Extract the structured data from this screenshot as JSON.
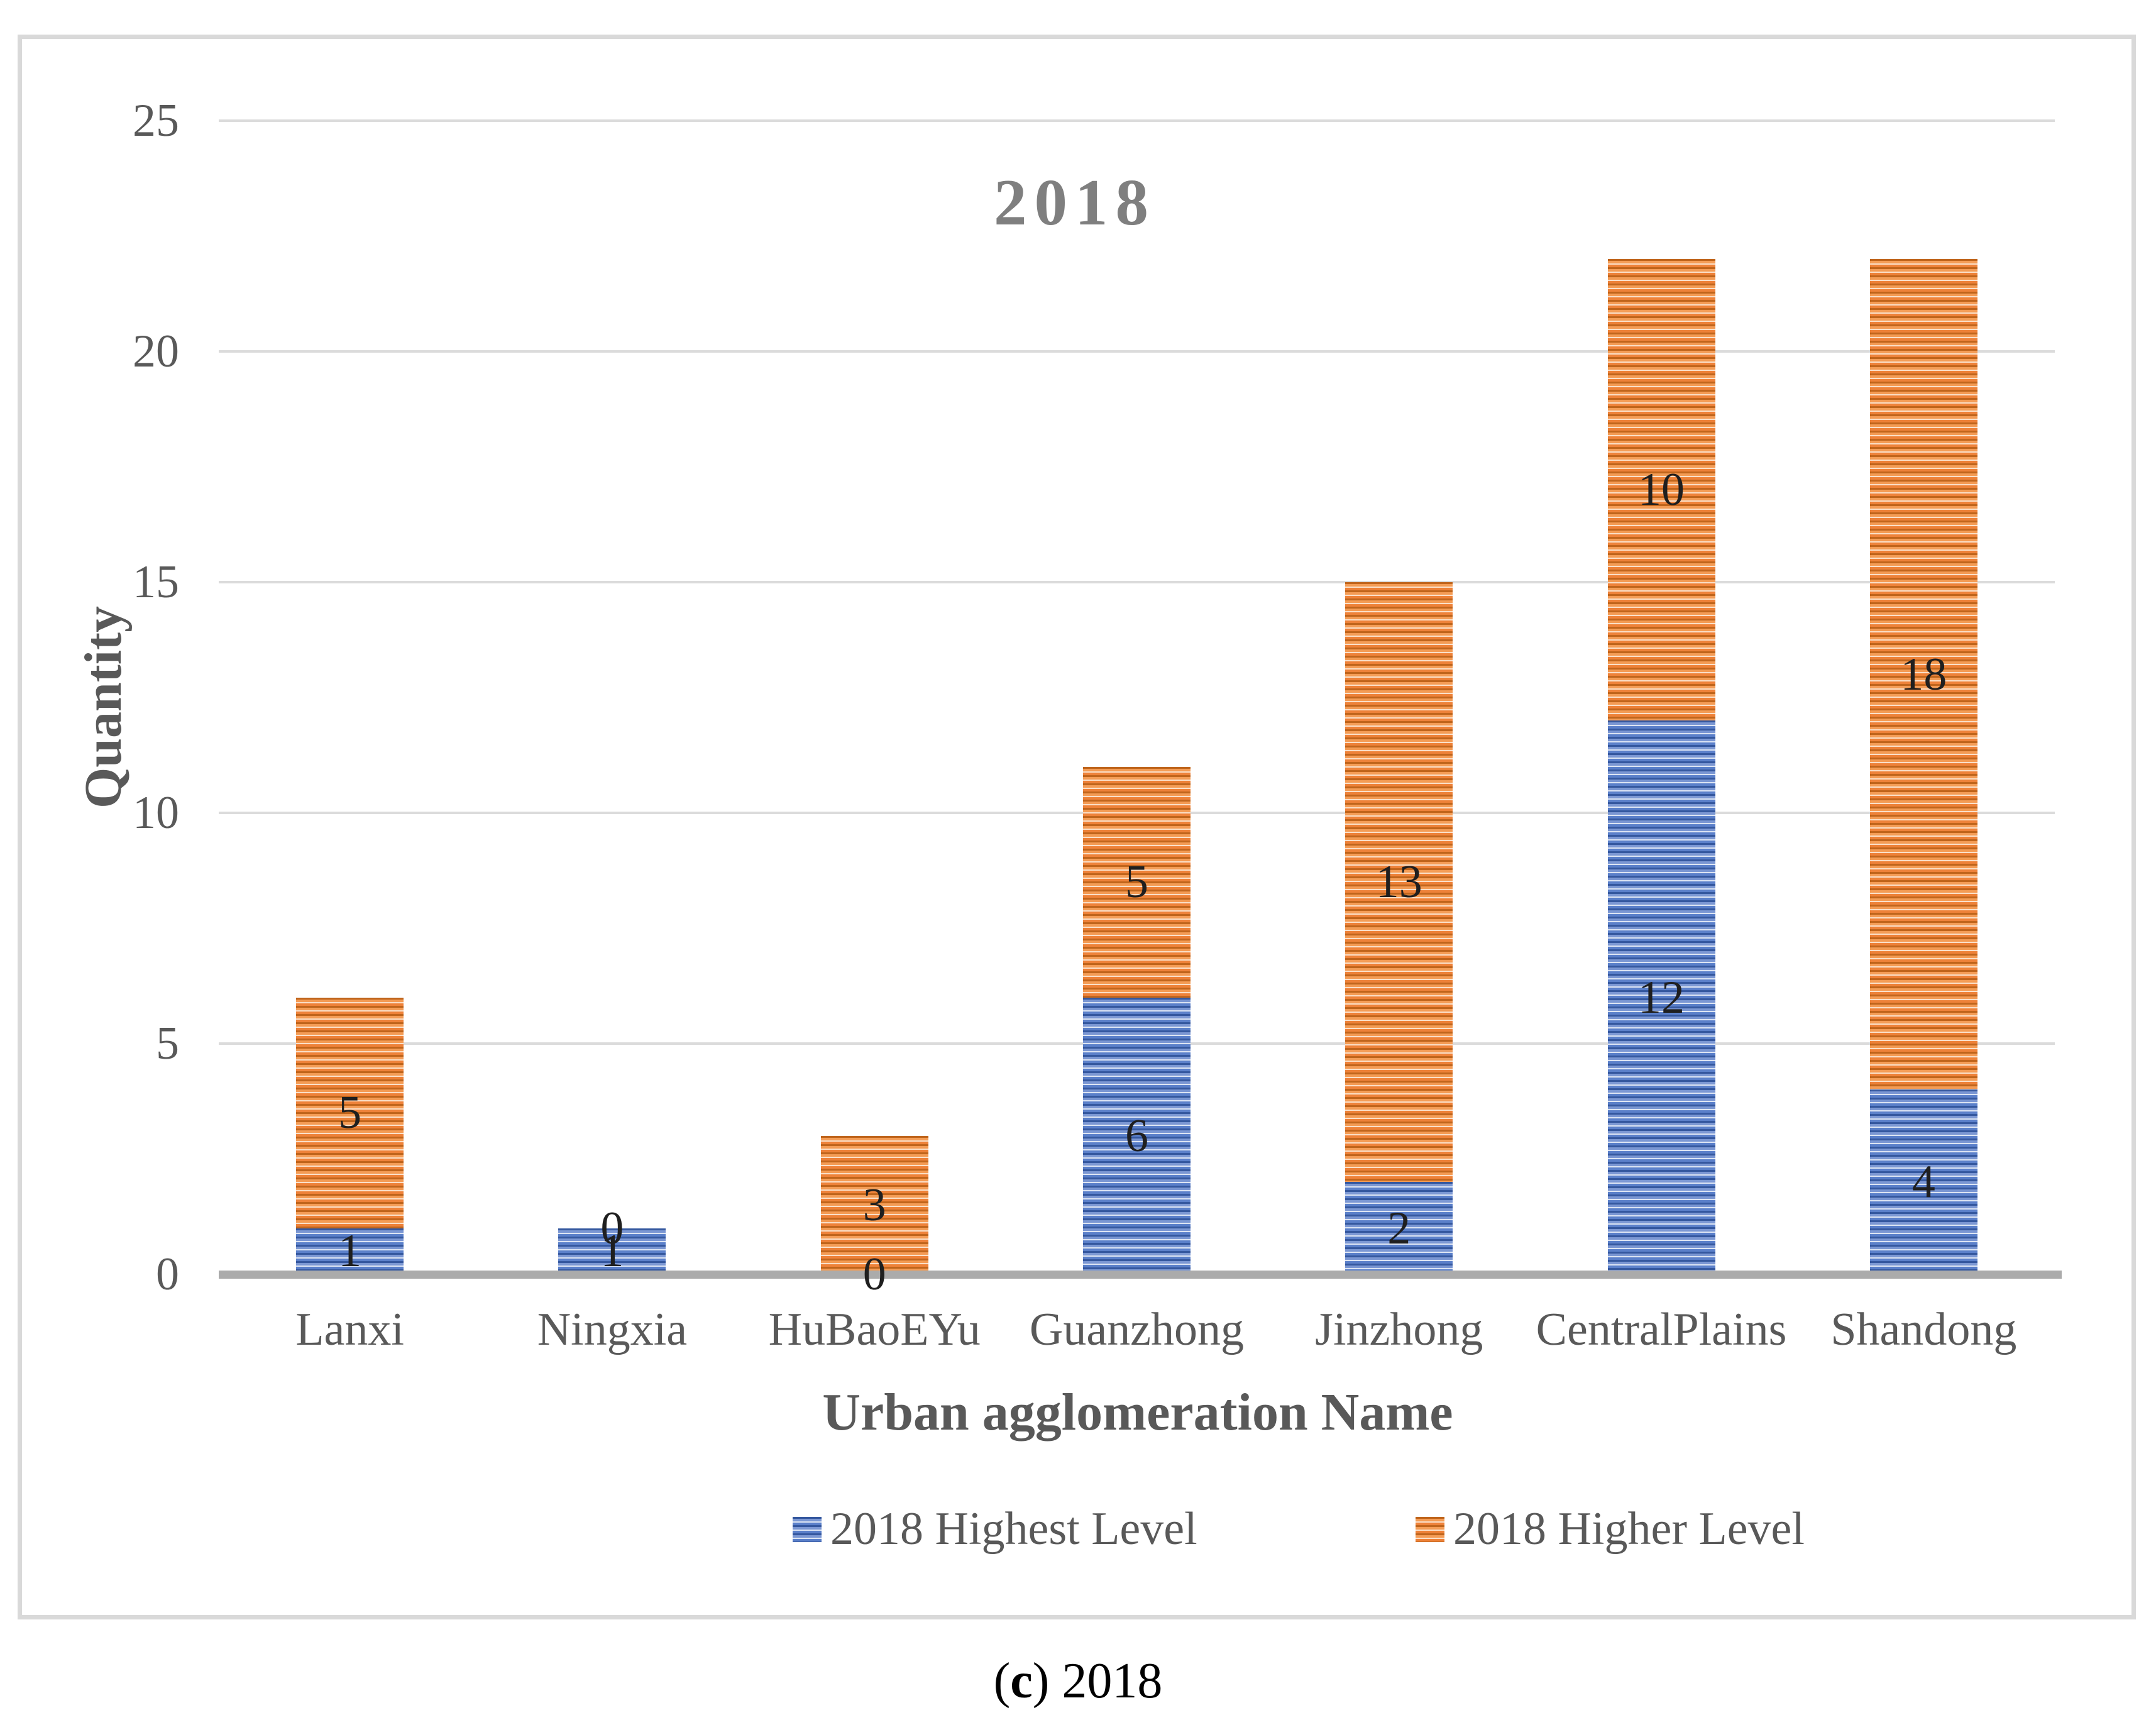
{
  "chart_data": {
    "type": "bar",
    "stacked": true,
    "title": "2018",
    "xlabel": "Urban agglomeration Name",
    "ylabel": "Quantity",
    "categories": [
      "Lanxi",
      "Ningxia",
      "HuBaoEYu",
      "Guanzhong",
      "Jinzhong",
      "CentralPlains",
      "Shandong"
    ],
    "series": [
      {
        "name": "2018 Highest Level",
        "color": "#4472C4",
        "values": [
          1,
          1,
          0,
          6,
          2,
          12,
          4
        ]
      },
      {
        "name": "2018 Higher Level",
        "color": "#ED7D31",
        "values": [
          5,
          0,
          3,
          5,
          13,
          10,
          18
        ]
      }
    ],
    "totals": [
      6,
      1,
      3,
      11,
      15,
      22,
      22
    ],
    "ylim": [
      0,
      25
    ],
    "yticks": [
      0,
      5,
      10,
      15,
      20,
      25
    ],
    "grid": true,
    "legend_position": "bottom",
    "title_color": "#7F7F7F",
    "text_color": "#595959",
    "data_label_color": "#1f1f1f",
    "gridline_color": "#DBDBDB",
    "axis_line_color": "#ABABAB",
    "border_color": "#D9D9D9"
  },
  "caption": {
    "pre": "(",
    "marker": "c",
    "post": ") ",
    "year": "2018"
  }
}
